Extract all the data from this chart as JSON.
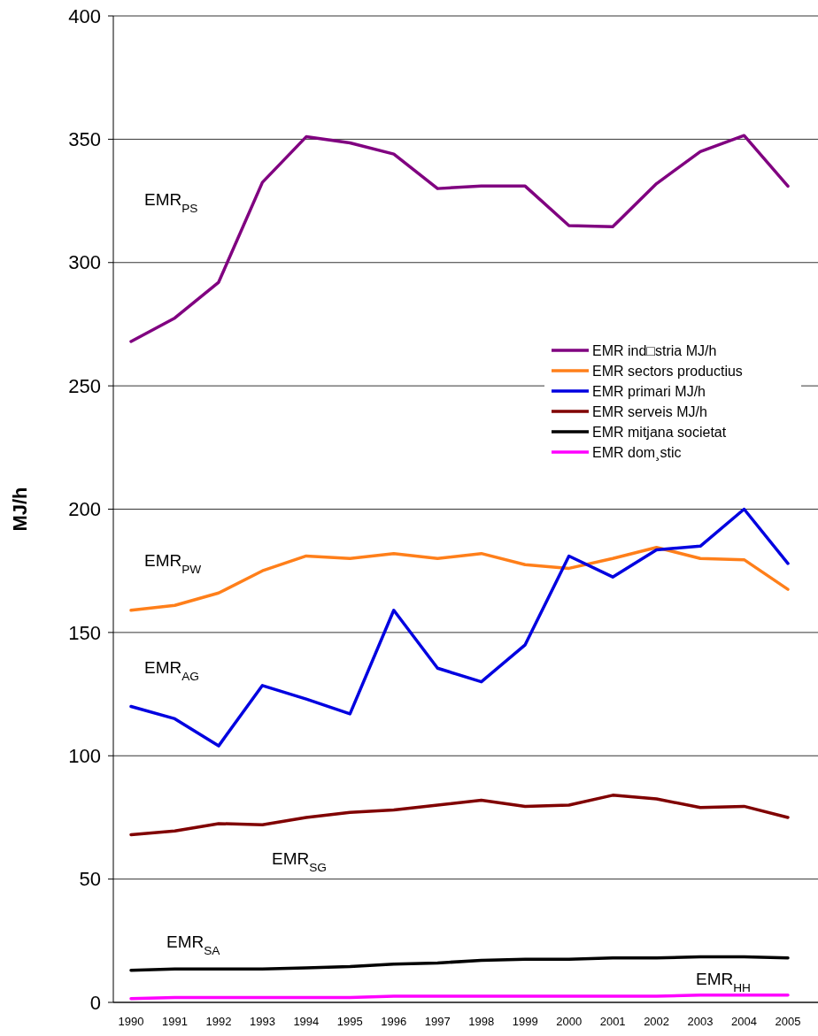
{
  "chart_data": {
    "type": "line",
    "ylabel": "MJ/h",
    "categories": [
      "1990",
      "1991",
      "1992",
      "1993",
      "1994",
      "1995",
      "1996",
      "1997",
      "1998",
      "1999",
      "2000",
      "2001",
      "2002",
      "2003",
      "2004",
      "2005"
    ],
    "ylim": [
      0,
      400
    ],
    "yticks": [
      0,
      50,
      100,
      150,
      200,
      250,
      300,
      350,
      400
    ],
    "grid": "y",
    "legend": "right",
    "marker": "none",
    "line_style": "solid",
    "series": [
      {
        "name": "EMR ind□stria MJ/h",
        "color": "#800080",
        "values": [
          268,
          277.5,
          292,
          332.5,
          351,
          348.5,
          344,
          330,
          331,
          331,
          315,
          314.5,
          332,
          345,
          351.5,
          331
        ]
      },
      {
        "name": "EMR sectors productius",
        "color": "#ff7f1a",
        "values": [
          159,
          161,
          166,
          175,
          181,
          180,
          182,
          180,
          182,
          177.5,
          176,
          180,
          184.5,
          180,
          179.5,
          167.5
        ]
      },
      {
        "name": "EMR primari MJ/h",
        "color": "#0000e0",
        "values": [
          120,
          115,
          104,
          128.5,
          123,
          117,
          159,
          135.5,
          130,
          145,
          181,
          172.5,
          183.5,
          185,
          200,
          178
        ]
      },
      {
        "name": "EMR serveis MJ/h",
        "color": "#800000",
        "values": [
          68,
          69.5,
          72.5,
          72,
          75,
          77,
          78,
          80,
          82,
          79.5,
          80,
          84,
          82.5,
          79,
          79.5,
          75
        ]
      },
      {
        "name": "EMR mitjana societat",
        "color": "#000000",
        "values": [
          13,
          13.5,
          13.5,
          13.5,
          14,
          14.5,
          15.5,
          16,
          17,
          17.5,
          17.5,
          18,
          18,
          18.5,
          18.5,
          18
        ]
      },
      {
        "name": "EMR dom¸stic",
        "color": "#ff00ff",
        "values": [
          1.5,
          2,
          2,
          2,
          2,
          2,
          2.5,
          2.5,
          2.5,
          2.5,
          2.5,
          2.5,
          2.5,
          3,
          3,
          3
        ]
      }
    ],
    "annotations": [
      "EMR$_{PS}$",
      "EMR$_{PW}$",
      "EMR$_{AG}$",
      "EMR$_{SG}$",
      "EMR$_{SA}$",
      "EMR$_{HH}$"
    ]
  }
}
